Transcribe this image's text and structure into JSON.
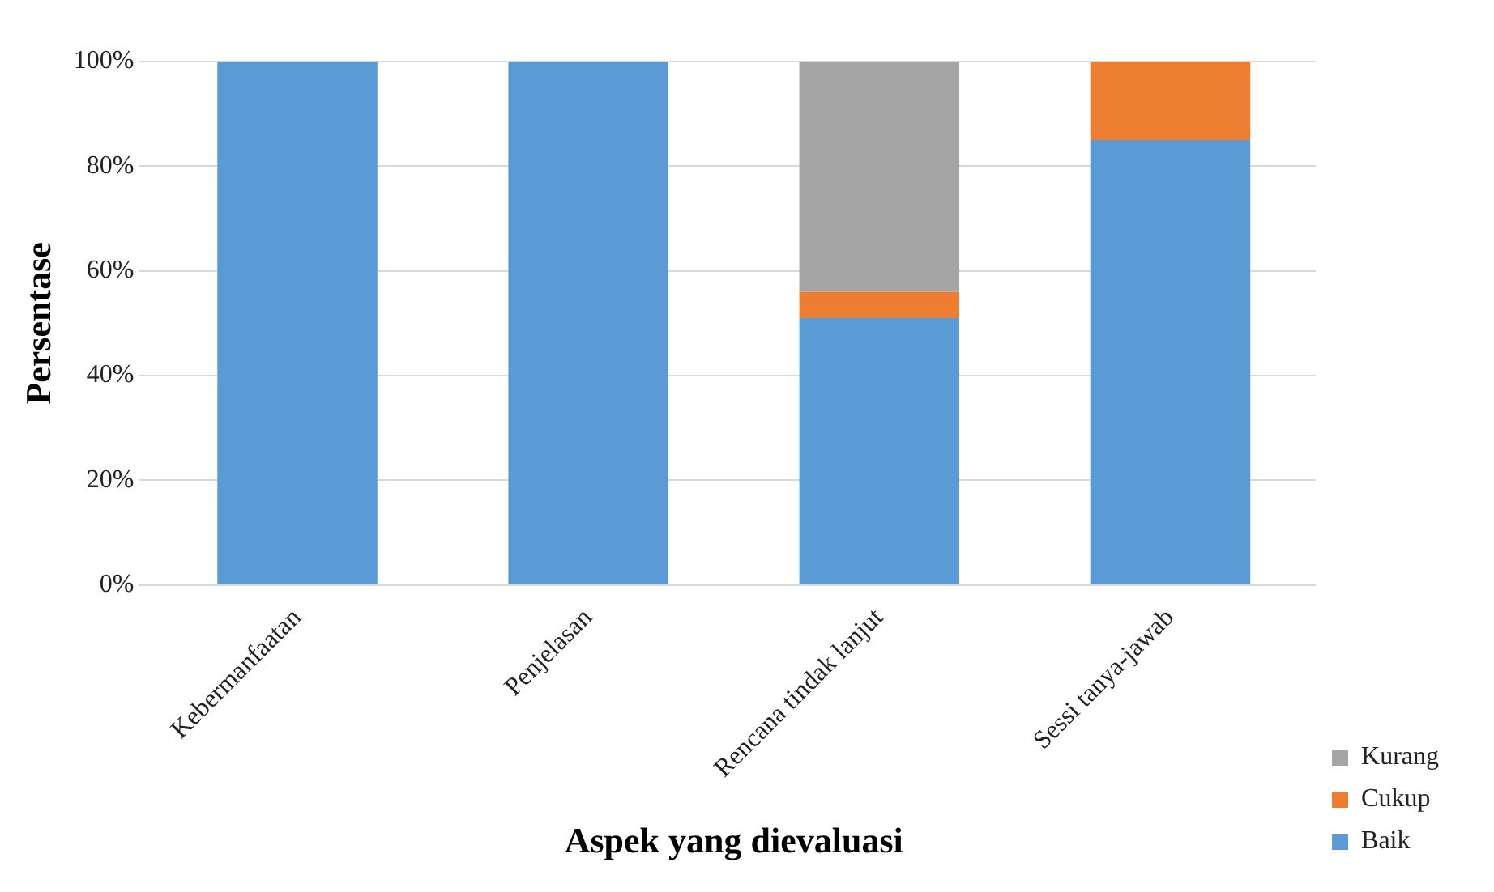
{
  "chart_data": {
    "type": "bar",
    "stacked": true,
    "xlabel": "Aspek yang dievaluasi",
    "ylabel": "Persentase",
    "categories": [
      "Kebermanfaatan",
      "Penjelasan",
      "Rencana tindak lanjut",
      "Sessi tanya-jawab"
    ],
    "series": [
      {
        "name": "Baik",
        "color": "#5b9bd5",
        "values": [
          100,
          100,
          51,
          85
        ]
      },
      {
        "name": "Cukup",
        "color": "#ed7d31",
        "values": [
          0,
          0,
          5,
          15
        ]
      },
      {
        "name": "Kurang",
        "color": "#a5a5a5",
        "values": [
          0,
          0,
          44,
          0
        ]
      }
    ],
    "ylim": [
      0,
      100
    ],
    "yticks": [
      {
        "value": 0,
        "label": "0%"
      },
      {
        "value": 20,
        "label": "20%"
      },
      {
        "value": 40,
        "label": "40%"
      },
      {
        "value": 60,
        "label": "60%"
      },
      {
        "value": 80,
        "label": "80%"
      },
      {
        "value": 100,
        "label": "100%"
      }
    ],
    "grid": "y",
    "legend": "right"
  }
}
